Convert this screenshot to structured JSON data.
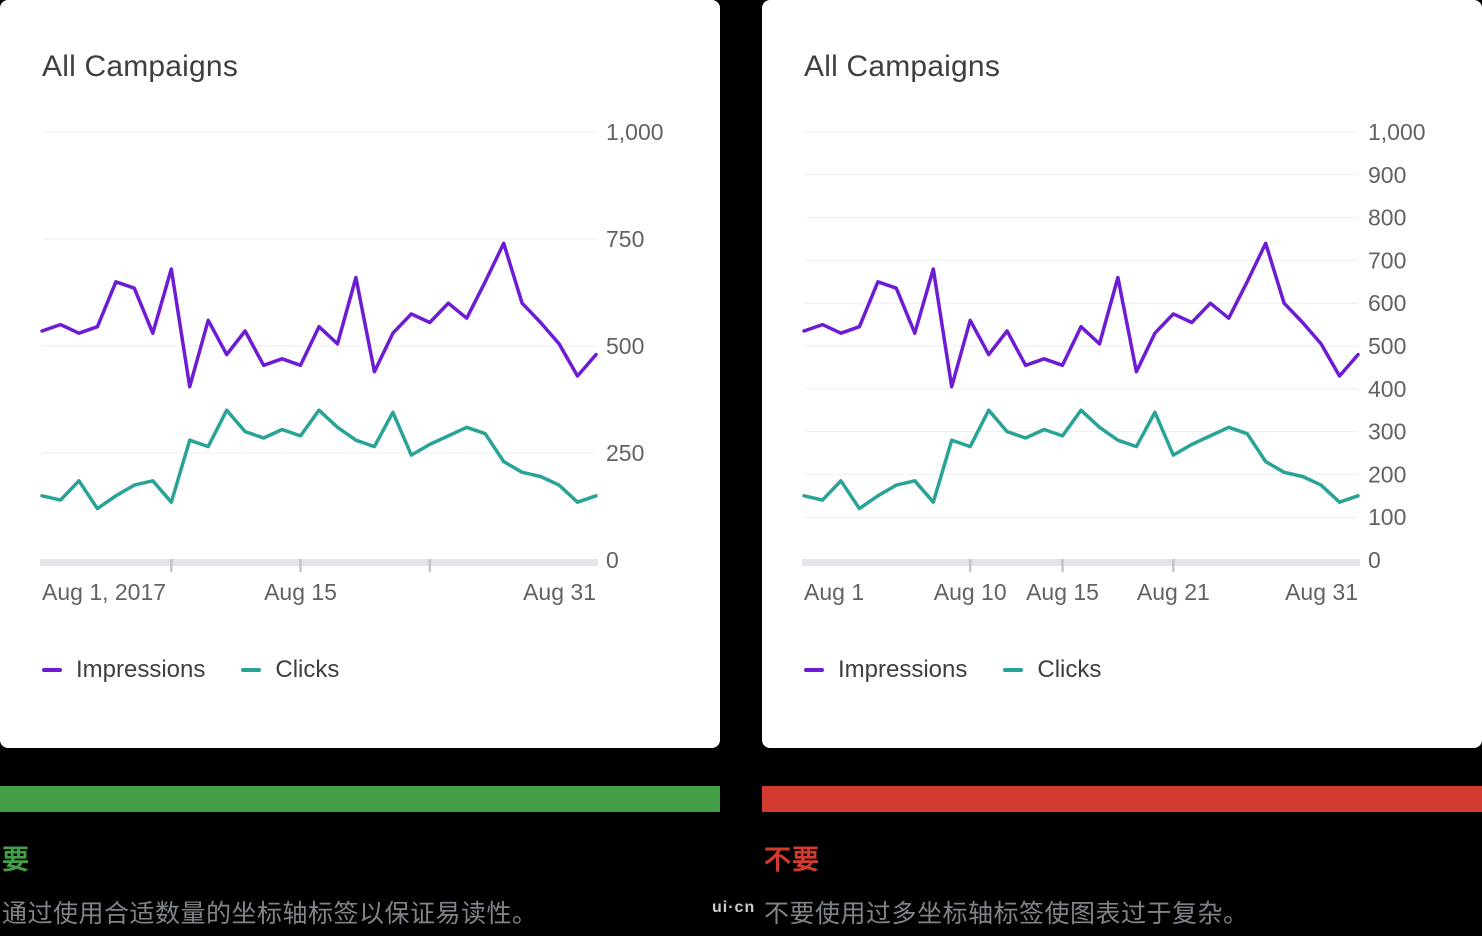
{
  "colors": {
    "impressions": "#6d1cd4",
    "clicks": "#2aa397",
    "do": "#43a047",
    "dont": "#d33b2f",
    "grid": "#ebedef",
    "axis_band": "#e3e5e8",
    "axis_tick": "#c3c7cb",
    "axis_label": "#5f6368",
    "title_text": "#3c4043",
    "caption_text": "#7f848a",
    "card_bg": "#ffffff",
    "page_bg": "#000000"
  },
  "sections": {
    "do": {
      "heading": "要",
      "caption": "通过使用合适数量的坐标轴标签以保证易读性。"
    },
    "dont": {
      "heading": "不要",
      "caption": "不要使用过多坐标轴标签使图表过于复杂。"
    }
  },
  "watermark": {
    "text": "ui·cn"
  },
  "chart_data": [
    {
      "type": "line",
      "title": "All Campaigns",
      "x_domain": {
        "month": "August 2017",
        "start_day": 1,
        "end_day": 31
      },
      "ylim": [
        0,
        1000
      ],
      "y_axis_side": "right",
      "grid": "horizontal",
      "y_tick_values": [
        0,
        250,
        500,
        750,
        1000
      ],
      "y_tick_labels": [
        "0",
        "250",
        "500",
        "750",
        "1,000"
      ],
      "x_ticks": [
        {
          "day": 1,
          "label": "Aug 1, 2017"
        },
        {
          "day": 15,
          "label": "Aug 15"
        },
        {
          "day": 31,
          "label": "Aug 31"
        }
      ],
      "x_minor_tick_days": [
        8,
        15,
        22
      ],
      "legend": [
        "Impressions",
        "Clicks"
      ],
      "series": [
        {
          "name": "Impressions",
          "color_key": "impressions",
          "values": [
            535,
            550,
            530,
            545,
            650,
            635,
            530,
            680,
            405,
            560,
            480,
            535,
            455,
            470,
            455,
            545,
            505,
            660,
            440,
            530,
            575,
            555,
            600,
            565,
            650,
            740,
            600,
            555,
            505,
            430,
            480
          ]
        },
        {
          "name": "Clicks",
          "color_key": "clicks",
          "values": [
            150,
            140,
            185,
            120,
            150,
            175,
            185,
            135,
            280,
            265,
            350,
            300,
            285,
            305,
            290,
            350,
            310,
            280,
            265,
            345,
            245,
            270,
            290,
            310,
            295,
            230,
            205,
            195,
            175,
            135,
            150
          ]
        }
      ]
    },
    {
      "type": "line",
      "title": "All Campaigns",
      "x_domain": {
        "month": "August 2017",
        "start_day": 1,
        "end_day": 31
      },
      "ylim": [
        0,
        1000
      ],
      "y_axis_side": "right",
      "grid": "horizontal",
      "y_tick_values": [
        0,
        100,
        200,
        300,
        400,
        500,
        600,
        700,
        800,
        900,
        1000
      ],
      "y_tick_labels": [
        "0",
        "100",
        "200",
        "300",
        "400",
        "500",
        "600",
        "700",
        "800",
        "900",
        "1,000"
      ],
      "x_ticks": [
        {
          "day": 1,
          "label": "Aug 1"
        },
        {
          "day": 10,
          "label": "Aug 10"
        },
        {
          "day": 15,
          "label": "Aug 15"
        },
        {
          "day": 21,
          "label": "Aug 21"
        },
        {
          "day": 31,
          "label": "Aug 31"
        }
      ],
      "x_minor_tick_days": [
        10,
        15,
        21
      ],
      "legend": [
        "Impressions",
        "Clicks"
      ],
      "series": [
        {
          "name": "Impressions",
          "color_key": "impressions",
          "values": [
            535,
            550,
            530,
            545,
            650,
            635,
            530,
            680,
            405,
            560,
            480,
            535,
            455,
            470,
            455,
            545,
            505,
            660,
            440,
            530,
            575,
            555,
            600,
            565,
            650,
            740,
            600,
            555,
            505,
            430,
            480
          ]
        },
        {
          "name": "Clicks",
          "color_key": "clicks",
          "values": [
            150,
            140,
            185,
            120,
            150,
            175,
            185,
            135,
            280,
            265,
            350,
            300,
            285,
            305,
            290,
            350,
            310,
            280,
            265,
            345,
            245,
            270,
            290,
            310,
            295,
            230,
            205,
            195,
            175,
            135,
            150
          ]
        }
      ]
    }
  ]
}
